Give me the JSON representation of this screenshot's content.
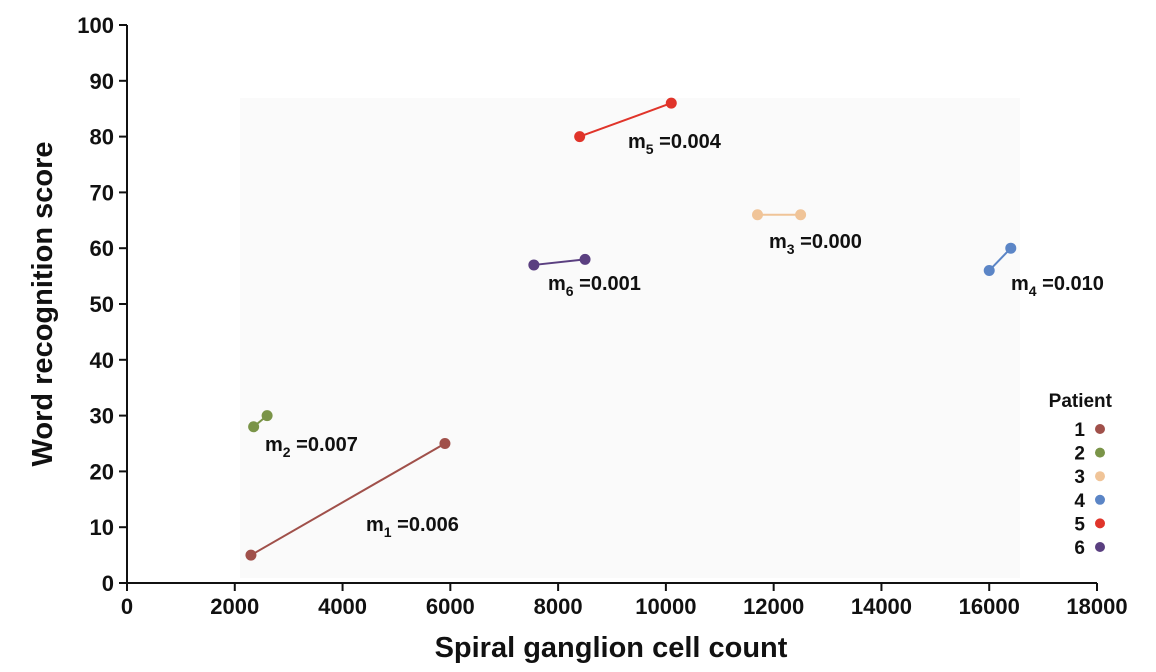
{
  "chart_data": {
    "type": "line",
    "title": "",
    "xlabel": "Spiral ganglion cell count",
    "ylabel": "Word recognition score",
    "xlim": [
      0,
      18000
    ],
    "ylim": [
      0,
      100
    ],
    "x_ticks": [
      0,
      2000,
      4000,
      6000,
      8000,
      10000,
      12000,
      14000,
      16000,
      18000
    ],
    "y_ticks": [
      0,
      10,
      20,
      30,
      40,
      50,
      60,
      70,
      80,
      90,
      100
    ],
    "grid": false,
    "legend": {
      "title": "Patient",
      "position": "bottom-right"
    },
    "series": [
      {
        "name": "1",
        "color": "#a0504a",
        "points": [
          [
            2300,
            5
          ],
          [
            5900,
            25
          ]
        ],
        "slope_label": {
          "sub": "1",
          "value": "0.006"
        }
      },
      {
        "name": "2",
        "color": "#7a9448",
        "points": [
          [
            2350,
            28
          ],
          [
            2600,
            30
          ]
        ],
        "slope_label": {
          "sub": "2",
          "value": "0.007"
        }
      },
      {
        "name": "3",
        "color": "#f0c498",
        "points": [
          [
            11700,
            66
          ],
          [
            12500,
            66
          ]
        ],
        "slope_label": {
          "sub": "3",
          "value": "0.000"
        }
      },
      {
        "name": "4",
        "color": "#5b85c6",
        "points": [
          [
            16000,
            56
          ],
          [
            16400,
            60
          ]
        ],
        "slope_label": {
          "sub": "4",
          "value": "0.010"
        }
      },
      {
        "name": "5",
        "color": "#e0342a",
        "points": [
          [
            8400,
            80
          ],
          [
            10100,
            86
          ]
        ],
        "slope_label": {
          "sub": "5",
          "value": "0.004"
        }
      },
      {
        "name": "6",
        "color": "#5a3f80",
        "points": [
          [
            7550,
            57
          ],
          [
            8500,
            58
          ]
        ],
        "slope_label": {
          "sub": "6",
          "value": "0.001"
        }
      }
    ]
  }
}
